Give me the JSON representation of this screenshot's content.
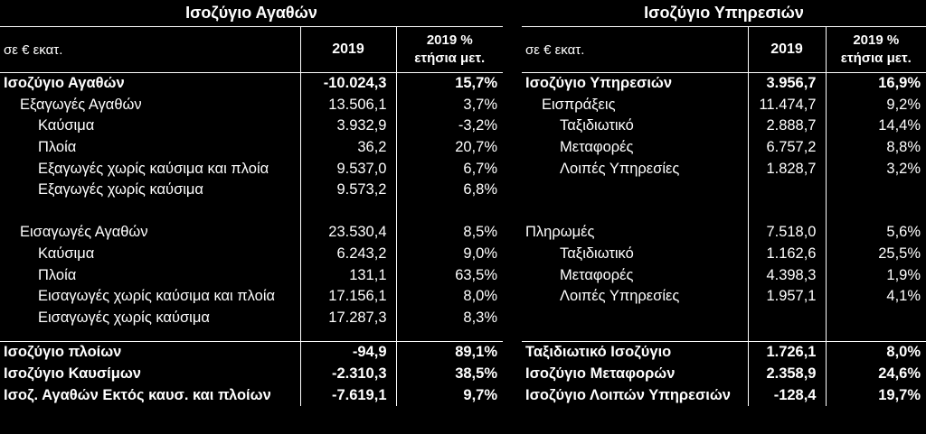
{
  "goods": {
    "title": "Ισοζύγιο Αγαθών",
    "unit": "σε € εκατ.",
    "col_year": "2019",
    "col_pct_1": "2019 %",
    "col_pct_2": "ετήσια μετ.",
    "rows": [
      {
        "label": "Ισοζύγιο Αγαθών",
        "value": "-10.024,3",
        "change": "15,7%",
        "level": 0,
        "bold": true
      },
      {
        "label": "Εξαγωγές Αγαθών",
        "value": "13.506,1",
        "change": "3,7%",
        "level": 1
      },
      {
        "label": "Καύσιμα",
        "value": "3.932,9",
        "change": "-3,2%",
        "level": 2
      },
      {
        "label": "Πλοία",
        "value": "36,2",
        "change": "20,7%",
        "level": 2
      },
      {
        "label": "Εξαγωγές χωρίς καύσιμα και πλοία",
        "value": "9.537,0",
        "change": "6,7%",
        "level": 2
      },
      {
        "label": "Εξαγωγές χωρίς καύσιμα",
        "value": "9.573,2",
        "change": "6,8%",
        "level": 2
      },
      {
        "blank": true
      },
      {
        "label": "Εισαγωγές Αγαθών",
        "value": "23.530,4",
        "change": "8,5%",
        "level": 1
      },
      {
        "label": "Καύσιμα",
        "value": "6.243,2",
        "change": "9,0%",
        "level": 2
      },
      {
        "label": "Πλοία",
        "value": "131,1",
        "change": "63,5%",
        "level": 2
      },
      {
        "label": "Εισαγωγές χωρίς καύσιμα και πλοία",
        "value": "17.156,1",
        "change": "8,0%",
        "level": 2
      },
      {
        "label": "Εισαγωγές χωρίς καύσιμα",
        "value": "17.287,3",
        "change": "8,3%",
        "level": 2
      },
      {
        "gap": true
      },
      {
        "label": "Ισοζύγιο πλοίων",
        "value": "-94,9",
        "change": "89,1%",
        "level": 0,
        "bold": true,
        "topline": true
      },
      {
        "label": "Ισοζύγιο Καυσίμων",
        "value": "-2.310,3",
        "change": "38,5%",
        "level": 0,
        "bold": true
      },
      {
        "label": "Ισοζ. Αγαθών Εκτός καυσ. και πλοίων",
        "value": "-7.619,1",
        "change": "9,7%",
        "level": 0,
        "bold": true
      }
    ]
  },
  "services": {
    "title": "Ισοζύγιο Υπηρεσιών",
    "unit": "σε € εκατ.",
    "col_year": "2019",
    "col_pct_1": "2019 %",
    "col_pct_2": "ετήσια μετ.",
    "rows": [
      {
        "label": "Ισοζύγιο Υπηρεσιών",
        "value": "3.956,7",
        "change": "16,9%",
        "level": 0,
        "bold": true
      },
      {
        "label": "Εισπράξεις",
        "value": "11.474,7",
        "change": "9,2%",
        "level": 1
      },
      {
        "label": "Ταξιδιωτικό",
        "value": "2.888,7",
        "change": "14,4%",
        "level": 2
      },
      {
        "label": "Μεταφορές",
        "value": "6.757,2",
        "change": "8,8%",
        "level": 2
      },
      {
        "label": "Λοιπές Υπηρεσίες",
        "value": "1.828,7",
        "change": "3,2%",
        "level": 2
      },
      {
        "blank": true
      },
      {
        "blank": true
      },
      {
        "label": "Πληρωμές",
        "value": "7.518,0",
        "change": "5,6%",
        "level": 0
      },
      {
        "label": "Ταξιδιωτικό",
        "value": "1.162,6",
        "change": "25,5%",
        "level": 2
      },
      {
        "label": "Μεταφορές",
        "value": "4.398,3",
        "change": "1,9%",
        "level": 2
      },
      {
        "label": "Λοιπές Υπηρεσίες",
        "value": "1.957,1",
        "change": "4,1%",
        "level": 2
      },
      {
        "blank": true
      },
      {
        "gap": true
      },
      {
        "label": "Ταξιδιωτικό Ισοζύγιο",
        "value": "1.726,1",
        "change": "8,0%",
        "level": 0,
        "bold": true,
        "topline": true
      },
      {
        "label": "Ισοζύγιο Μεταφορών",
        "value": "2.358,9",
        "change": "24,6%",
        "level": 0,
        "bold": true
      },
      {
        "label": "Ισοζύγιο Λοιπών Υπηρεσιών",
        "value": "-128,4",
        "change": "19,7%",
        "level": 0,
        "bold": true
      }
    ]
  }
}
